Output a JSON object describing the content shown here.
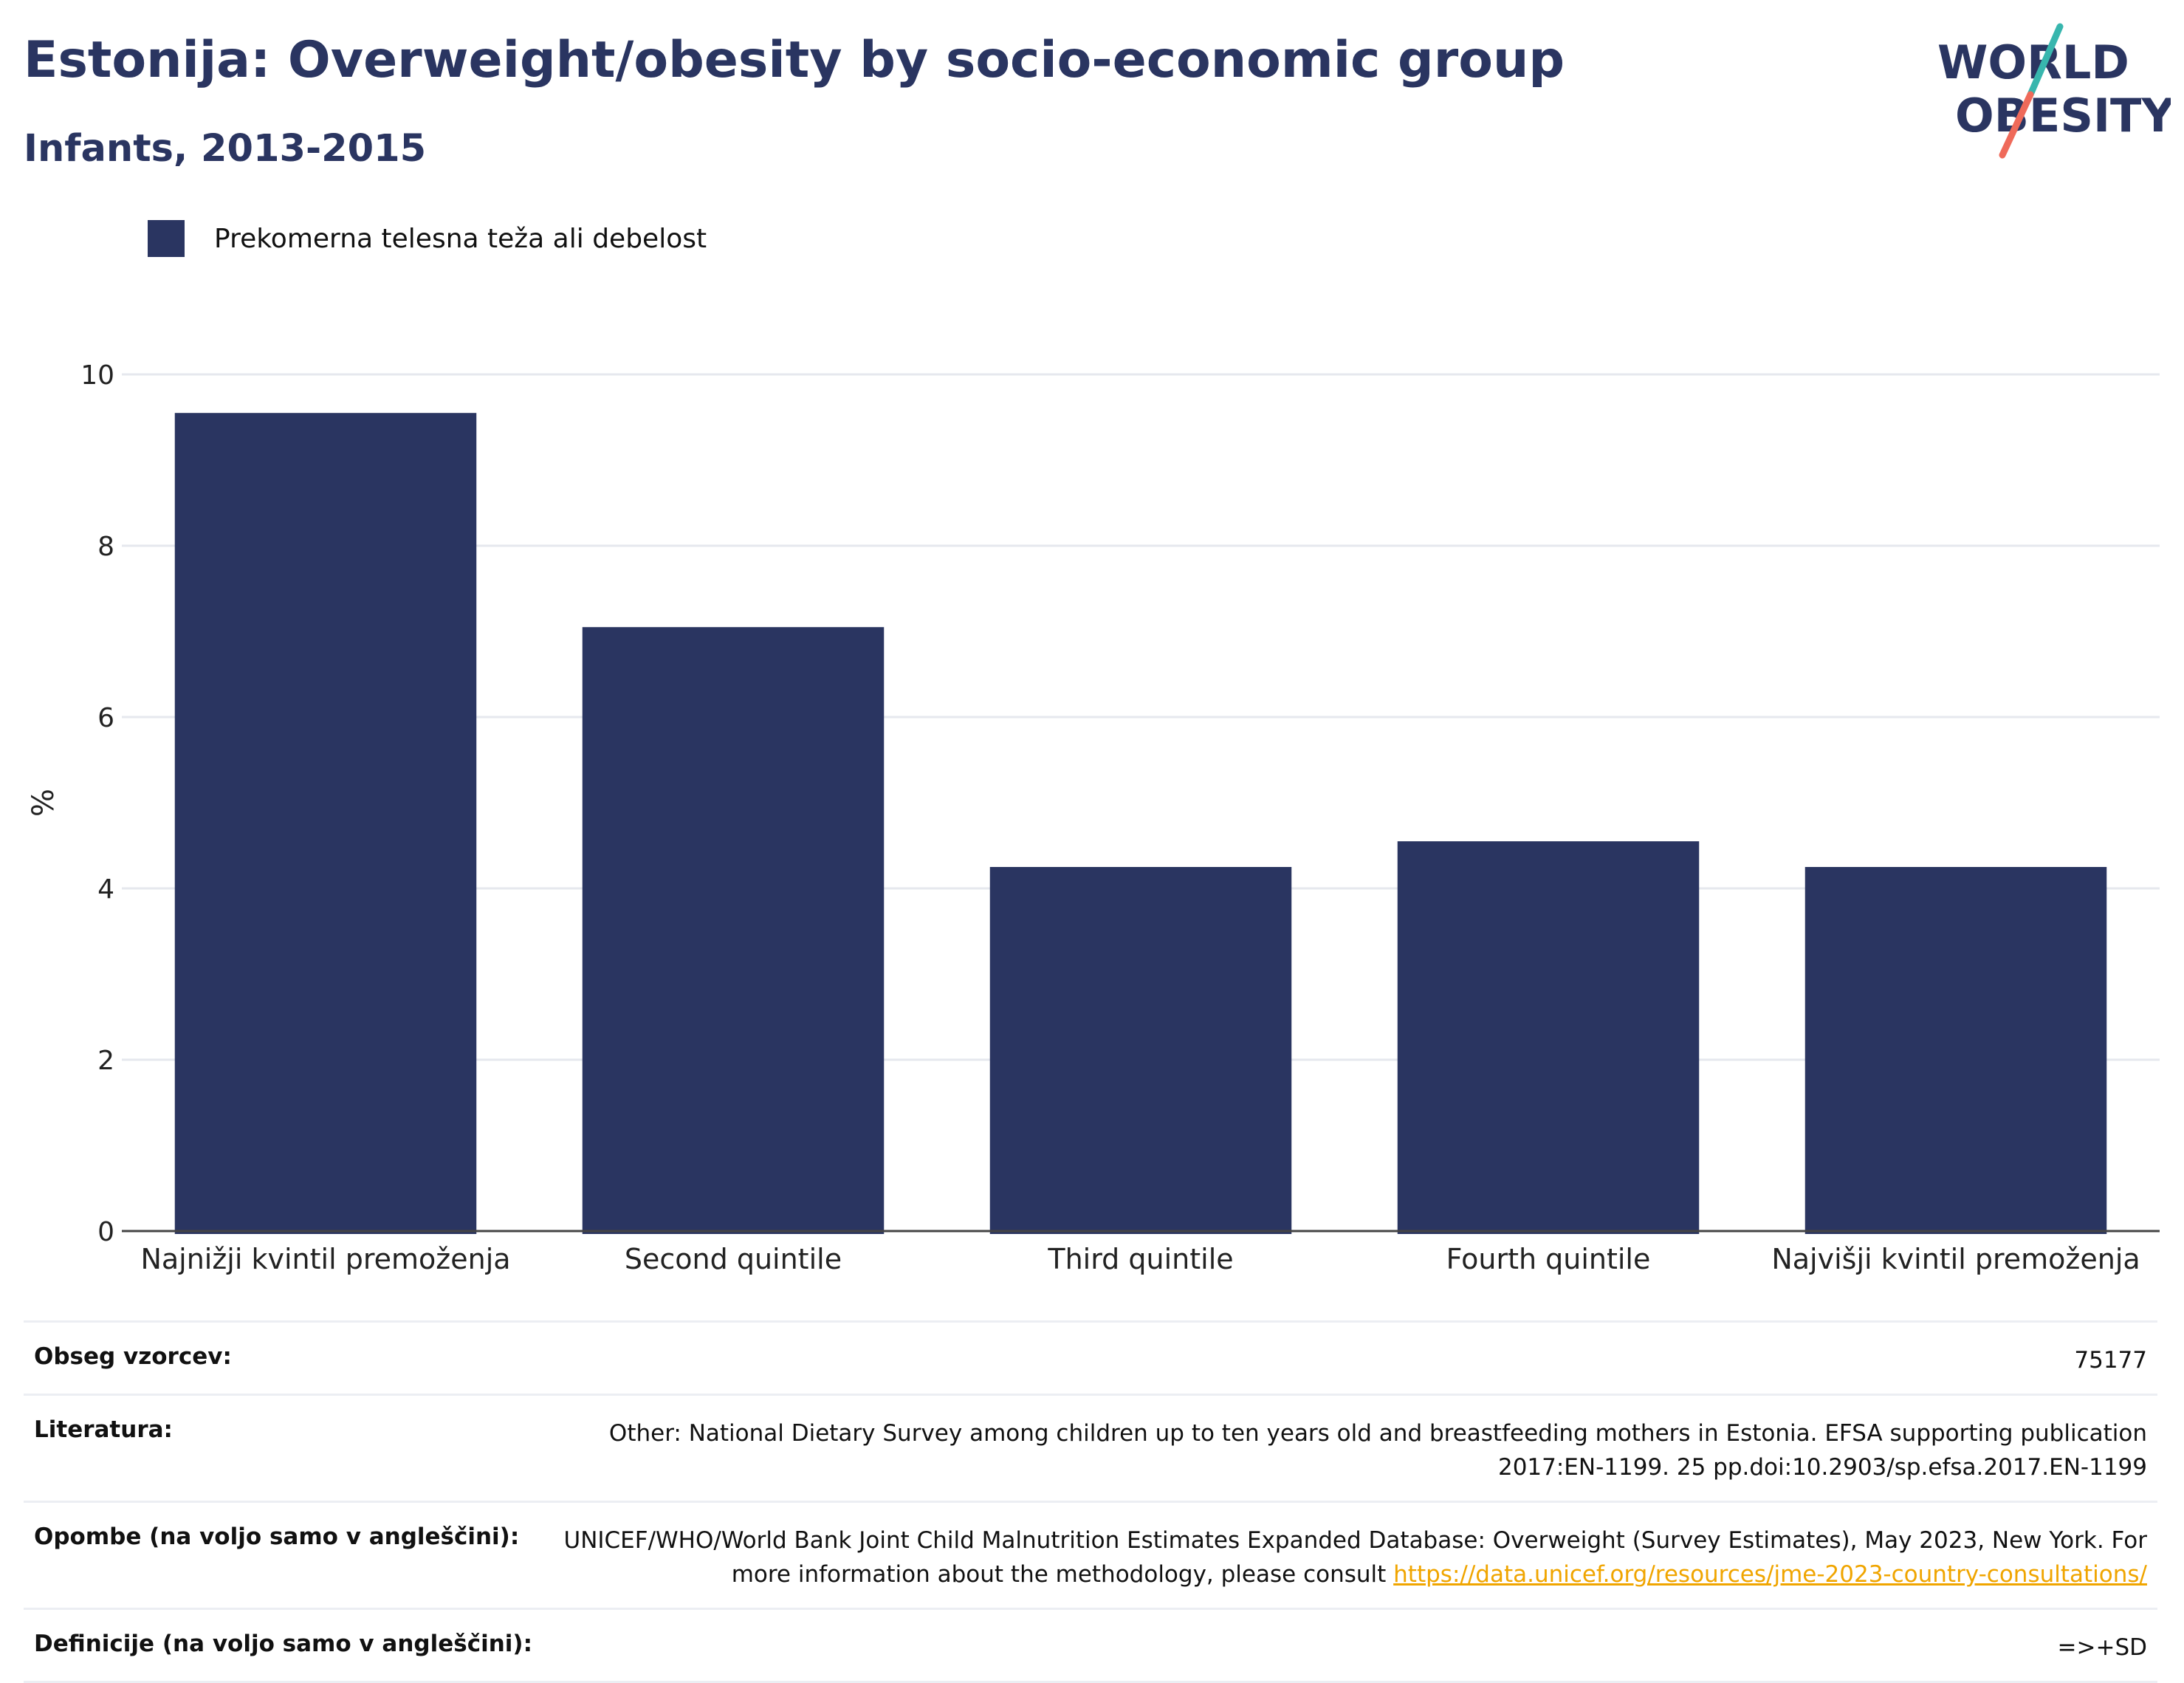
{
  "header": {
    "title": "Estonija: Overweight/obesity by socio-economic group",
    "subtitle": "Infants, 2013-2015",
    "logo_line1": "WORLD",
    "logo_line2": "OBESITY"
  },
  "colors": {
    "bar": "#2a3561",
    "title": "#2a3561",
    "grid": "#e6e8ee",
    "axis": "#444444",
    "link": "#f0a500",
    "logo_teal": "#38b6ae",
    "logo_coral": "#ef6a5a"
  },
  "legend": {
    "label": "Prekomerna telesna teža ali debelost"
  },
  "chart_data": {
    "type": "bar",
    "categories": [
      "Najnižji kvintil premoženja",
      "Second quintile",
      "Third quintile",
      "Fourth quintile",
      "Najvišji kvintil premoženja"
    ],
    "series": [
      {
        "name": "Prekomerna telesna teža ali debelost",
        "values": [
          9.55,
          7.05,
          4.25,
          4.55,
          4.25
        ]
      }
    ],
    "ylabel": "%",
    "xlabel": "",
    "ylim": [
      0,
      10
    ],
    "yticks": [
      0,
      2,
      4,
      6,
      8,
      10
    ],
    "grid": true,
    "legend_position": "top-left"
  },
  "meta": {
    "rows": [
      {
        "label": "Obseg vzorcev:",
        "value": "75177"
      },
      {
        "label": "Literatura:",
        "value": "Other: National Dietary Survey among children up to ten years old and breastfeeding mothers in Estonia. EFSA supporting publication 2017:EN-1199. 25 pp.doi:10.2903/sp.efsa.2017.EN-1199"
      },
      {
        "label": "Opombe (na voljo samo v angleščini):",
        "value": "UNICEF/WHO/World Bank Joint Child Malnutrition Estimates Expanded Database: Overweight (Survey Estimates), May 2023, New York. For more information about the methodology, please consult",
        "link": "https://data.unicef.org/resources/jme-2023-country-consultations/"
      },
      {
        "label": "Definicije (na voljo samo v angleščini):",
        "value": "=>+SD"
      }
    ]
  }
}
